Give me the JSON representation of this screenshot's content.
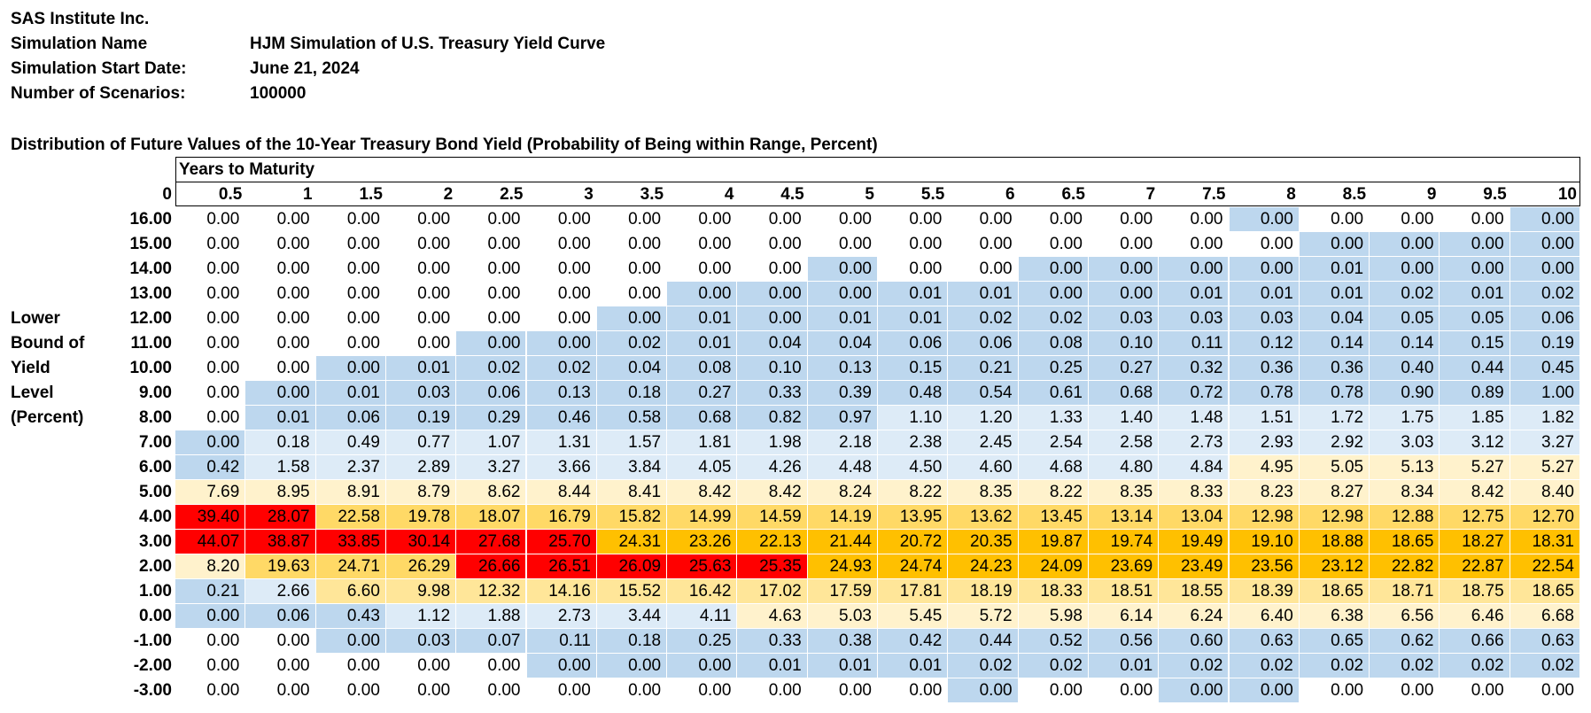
{
  "header": {
    "company": "SAS Institute Inc.",
    "rows": [
      {
        "label": "Simulation Name",
        "value": "HJM Simulation of U.S. Treasury Yield Curve"
      },
      {
        "label": "Simulation Start Date:",
        "value": "June 21, 2024"
      },
      {
        "label": "Number of Scenarios:",
        "value": "100000"
      }
    ]
  },
  "table": {
    "title": "Distribution of Future Values of the 10-Year Treasury Bond Yield (Probability of Being within Range, Percent)",
    "col_group_title": "Years to Maturity",
    "corner": "0",
    "side_label": [
      "Lower",
      "Bound of",
      "Yield",
      "Level",
      "(Percent)"
    ],
    "columns": [
      "0.5",
      "1",
      "1.5",
      "2",
      "2.5",
      "3",
      "3.5",
      "4",
      "4.5",
      "5",
      "5.5",
      "6",
      "6.5",
      "7",
      "7.5",
      "8",
      "8.5",
      "9",
      "9.5",
      "10"
    ],
    "rows": [
      {
        "label": "16.00",
        "values": [
          "0.00",
          "0.00",
          "0.00",
          "0.00",
          "0.00",
          "0.00",
          "0.00",
          "0.00",
          "0.00",
          "0.00",
          "0.00",
          "0.00",
          "0.00",
          "0.00",
          "0.00",
          "0.00",
          "0.00",
          "0.00",
          "0.00",
          "0.00"
        ]
      },
      {
        "label": "15.00",
        "values": [
          "0.00",
          "0.00",
          "0.00",
          "0.00",
          "0.00",
          "0.00",
          "0.00",
          "0.00",
          "0.00",
          "0.00",
          "0.00",
          "0.00",
          "0.00",
          "0.00",
          "0.00",
          "0.00",
          "0.00",
          "0.00",
          "0.00",
          "0.00"
        ]
      },
      {
        "label": "14.00",
        "values": [
          "0.00",
          "0.00",
          "0.00",
          "0.00",
          "0.00",
          "0.00",
          "0.00",
          "0.00",
          "0.00",
          "0.00",
          "0.00",
          "0.00",
          "0.00",
          "0.00",
          "0.00",
          "0.00",
          "0.01",
          "0.00",
          "0.00",
          "0.00"
        ]
      },
      {
        "label": "13.00",
        "values": [
          "0.00",
          "0.00",
          "0.00",
          "0.00",
          "0.00",
          "0.00",
          "0.00",
          "0.00",
          "0.00",
          "0.00",
          "0.01",
          "0.01",
          "0.00",
          "0.00",
          "0.01",
          "0.01",
          "0.01",
          "0.02",
          "0.01",
          "0.02"
        ]
      },
      {
        "label": "12.00",
        "values": [
          "0.00",
          "0.00",
          "0.00",
          "0.00",
          "0.00",
          "0.00",
          "0.00",
          "0.01",
          "0.00",
          "0.01",
          "0.01",
          "0.02",
          "0.02",
          "0.03",
          "0.03",
          "0.03",
          "0.04",
          "0.05",
          "0.05",
          "0.06"
        ]
      },
      {
        "label": "11.00",
        "values": [
          "0.00",
          "0.00",
          "0.00",
          "0.00",
          "0.00",
          "0.00",
          "0.02",
          "0.01",
          "0.04",
          "0.04",
          "0.06",
          "0.06",
          "0.08",
          "0.10",
          "0.11",
          "0.12",
          "0.14",
          "0.14",
          "0.15",
          "0.19"
        ]
      },
      {
        "label": "10.00",
        "values": [
          "0.00",
          "0.00",
          "0.00",
          "0.01",
          "0.02",
          "0.02",
          "0.04",
          "0.08",
          "0.10",
          "0.13",
          "0.15",
          "0.21",
          "0.25",
          "0.27",
          "0.32",
          "0.36",
          "0.36",
          "0.40",
          "0.44",
          "0.45"
        ]
      },
      {
        "label": "9.00",
        "values": [
          "0.00",
          "0.00",
          "0.01",
          "0.03",
          "0.06",
          "0.13",
          "0.18",
          "0.27",
          "0.33",
          "0.39",
          "0.48",
          "0.54",
          "0.61",
          "0.68",
          "0.72",
          "0.78",
          "0.78",
          "0.90",
          "0.89",
          "1.00"
        ]
      },
      {
        "label": "8.00",
        "values": [
          "0.00",
          "0.01",
          "0.06",
          "0.19",
          "0.29",
          "0.46",
          "0.58",
          "0.68",
          "0.82",
          "0.97",
          "1.10",
          "1.20",
          "1.33",
          "1.40",
          "1.48",
          "1.51",
          "1.72",
          "1.75",
          "1.85",
          "1.82"
        ]
      },
      {
        "label": "7.00",
        "values": [
          "0.00",
          "0.18",
          "0.49",
          "0.77",
          "1.07",
          "1.31",
          "1.57",
          "1.81",
          "1.98",
          "2.18",
          "2.38",
          "2.45",
          "2.54",
          "2.58",
          "2.73",
          "2.93",
          "2.92",
          "3.03",
          "3.12",
          "3.27"
        ]
      },
      {
        "label": "6.00",
        "values": [
          "0.42",
          "1.58",
          "2.37",
          "2.89",
          "3.27",
          "3.66",
          "3.84",
          "4.05",
          "4.26",
          "4.48",
          "4.50",
          "4.60",
          "4.68",
          "4.80",
          "4.84",
          "4.95",
          "5.05",
          "5.13",
          "5.27",
          "5.27"
        ]
      },
      {
        "label": "5.00",
        "values": [
          "7.69",
          "8.95",
          "8.91",
          "8.79",
          "8.62",
          "8.44",
          "8.41",
          "8.42",
          "8.42",
          "8.24",
          "8.22",
          "8.35",
          "8.22",
          "8.35",
          "8.33",
          "8.23",
          "8.27",
          "8.34",
          "8.42",
          "8.40"
        ]
      },
      {
        "label": "4.00",
        "values": [
          "39.40",
          "28.07",
          "22.58",
          "19.78",
          "18.07",
          "16.79",
          "15.82",
          "14.99",
          "14.59",
          "14.19",
          "13.95",
          "13.62",
          "13.45",
          "13.14",
          "13.04",
          "12.98",
          "12.98",
          "12.88",
          "12.75",
          "12.70"
        ]
      },
      {
        "label": "3.00",
        "values": [
          "44.07",
          "38.87",
          "33.85",
          "30.14",
          "27.68",
          "25.70",
          "24.31",
          "23.26",
          "22.13",
          "21.44",
          "20.72",
          "20.35",
          "19.87",
          "19.74",
          "19.49",
          "19.10",
          "18.88",
          "18.65",
          "18.27",
          "18.31"
        ]
      },
      {
        "label": "2.00",
        "values": [
          "8.20",
          "19.63",
          "24.71",
          "26.29",
          "26.66",
          "26.51",
          "26.09",
          "25.63",
          "25.35",
          "24.93",
          "24.74",
          "24.23",
          "24.09",
          "23.69",
          "23.49",
          "23.56",
          "23.12",
          "22.82",
          "22.87",
          "22.54"
        ]
      },
      {
        "label": "1.00",
        "values": [
          "0.21",
          "2.66",
          "6.60",
          "9.98",
          "12.32",
          "14.16",
          "15.52",
          "16.42",
          "17.02",
          "17.59",
          "17.81",
          "18.19",
          "18.33",
          "18.51",
          "18.55",
          "18.39",
          "18.65",
          "18.71",
          "18.75",
          "18.65"
        ]
      },
      {
        "label": "0.00",
        "values": [
          "0.00",
          "0.06",
          "0.43",
          "1.12",
          "1.88",
          "2.73",
          "3.44",
          "4.11",
          "4.63",
          "5.03",
          "5.45",
          "5.72",
          "5.98",
          "6.14",
          "6.24",
          "6.40",
          "6.38",
          "6.56",
          "6.46",
          "6.68"
        ]
      },
      {
        "label": "-1.00",
        "values": [
          "0.00",
          "0.00",
          "0.00",
          "0.03",
          "0.07",
          "0.11",
          "0.18",
          "0.25",
          "0.33",
          "0.38",
          "0.42",
          "0.44",
          "0.52",
          "0.56",
          "0.60",
          "0.63",
          "0.65",
          "0.62",
          "0.66",
          "0.63"
        ]
      },
      {
        "label": "-2.00",
        "values": [
          "0.00",
          "0.00",
          "0.00",
          "0.00",
          "0.00",
          "0.00",
          "0.00",
          "0.00",
          "0.01",
          "0.01",
          "0.01",
          "0.02",
          "0.02",
          "0.01",
          "0.02",
          "0.02",
          "0.02",
          "0.02",
          "0.02",
          "0.02"
        ]
      },
      {
        "label": "-3.00",
        "values": [
          "0.00",
          "0.00",
          "0.00",
          "0.00",
          "0.00",
          "0.00",
          "0.00",
          "0.00",
          "0.00",
          "0.00",
          "0.00",
          "0.00",
          "0.00",
          "0.00",
          "0.00",
          "0.00",
          "0.00",
          "0.00",
          "0.00",
          "0.00"
        ]
      }
    ],
    "colors": {
      "white": "#ffffff",
      "blue": "#bdd7ee",
      "lightblue": "#ddebf7",
      "cream": "#fff2cc",
      "lightgold": "#ffe699",
      "gold": "#ffd966",
      "orange": "#ffc000",
      "red": "#ff0000"
    },
    "color_codes": {
      "w": "white",
      "b": "blue",
      "l": "lightblue",
      "c": "cream",
      "y": "lightgold",
      "g": "gold",
      "o": "orange",
      "r": "red"
    },
    "fill_map": [
      "wwwwwwwwwwwwwwwbwwwb",
      "wwwwwwwwwwwwwwwwbbbb",
      "wwwwwwwwwbwwbbbbbbbb",
      "wwwwwwwbbbbbbbbbbbbb",
      "wwwwwwbbbbbbbbbbbbbb",
      "wwwwbbbbbbbbbbbbbbbb",
      "wwbbbbbbbbbbbbbbbbbb",
      "wbbbbbbbbbbbbbbbbbbb",
      "wbbbbbbbbblllllllll l",
      "bllllllllllllllllllll",
      "bllllllllllllllccccc",
      "cccccccccccccccccccc",
      "rrgggggggggggggggggg",
      "rrrrrrooooooooooooooo",
      "cgggrrrrrooooooooooo",
      "blyyyyyyyyyyyyyyyyyy",
      "bbblllllcccccccccccc",
      "wwbbbbbbbbbbbbbbbbbb",
      "wwwwwbbbbbbbbbbbbbbb",
      "wwwwwwwwwwwbwwbbwwww"
    ]
  }
}
